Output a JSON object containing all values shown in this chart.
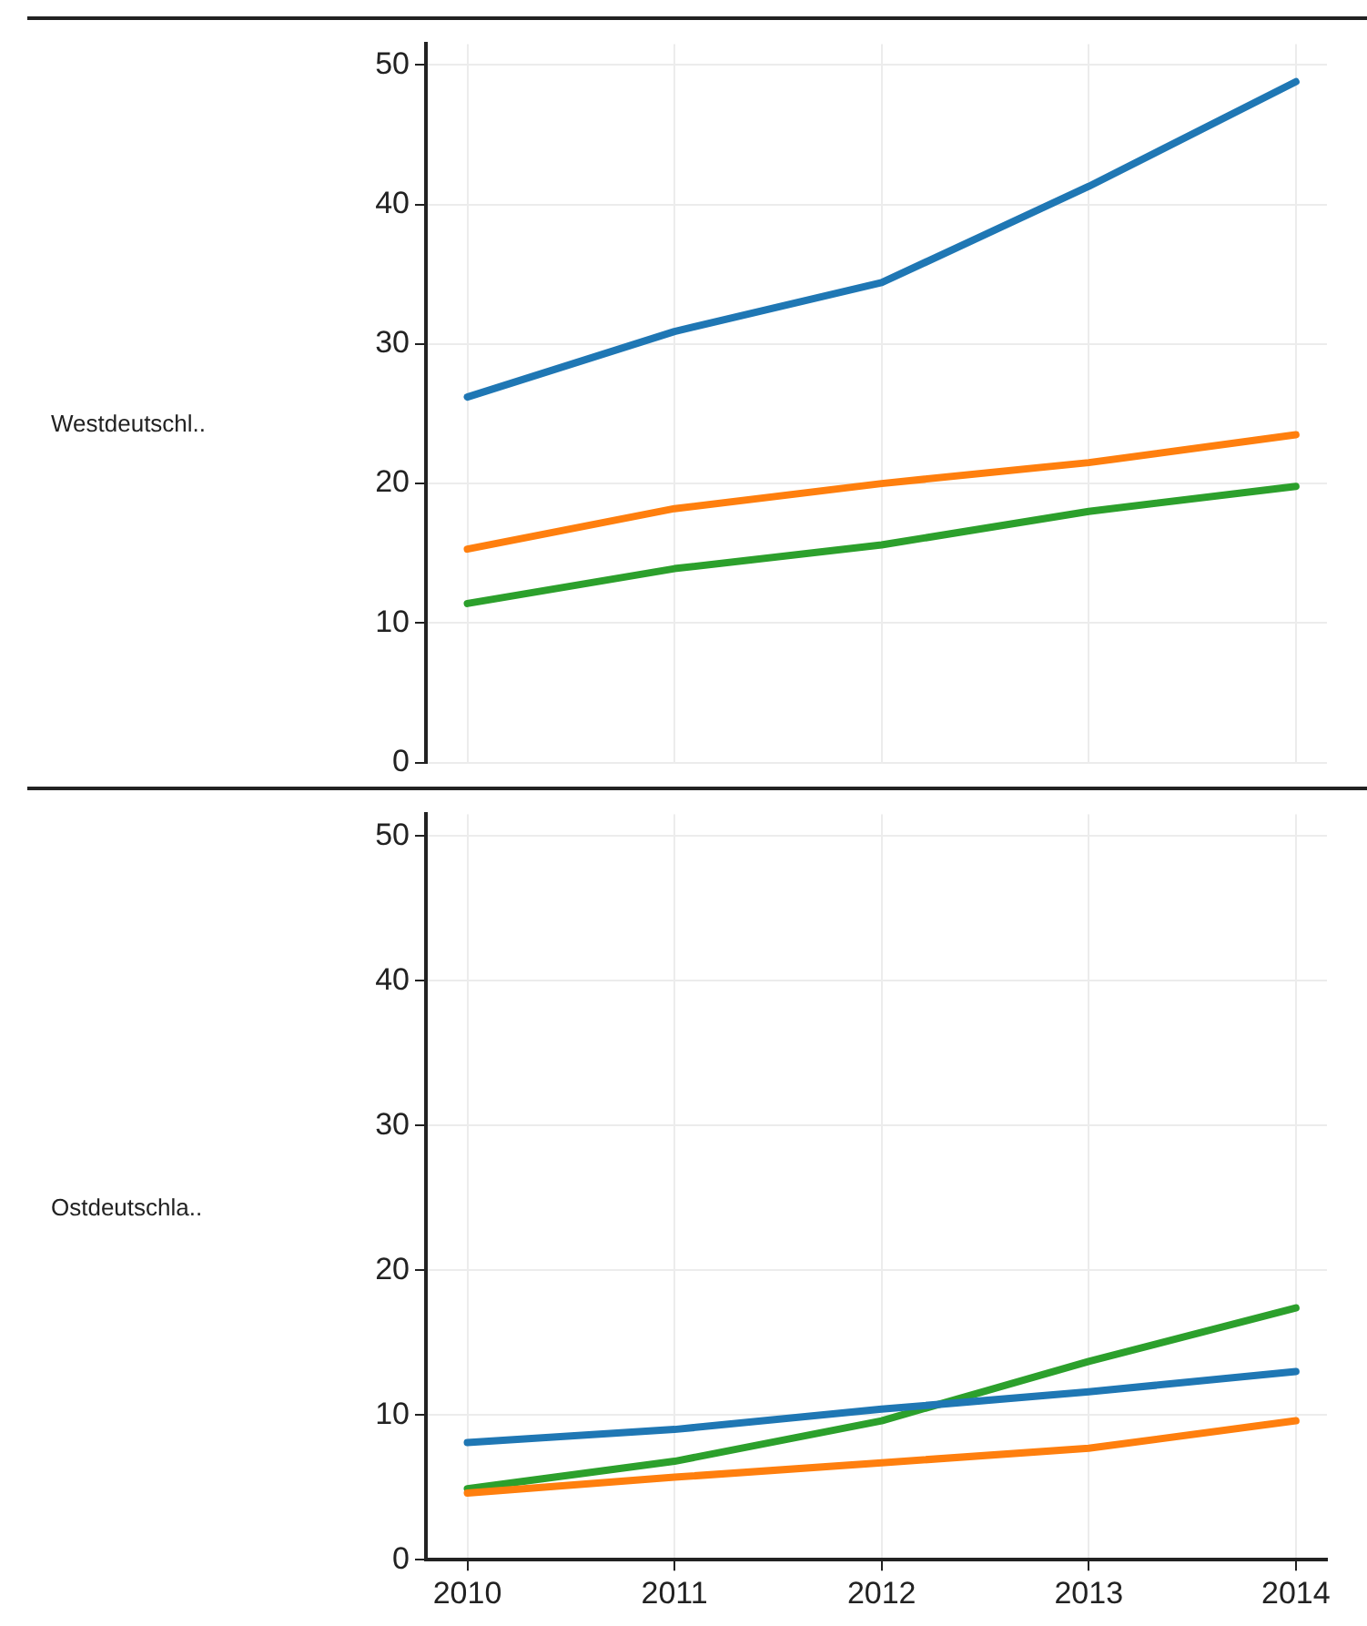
{
  "chart_data": [
    {
      "type": "line",
      "ylabel": "Westdeutschl..",
      "x": [
        2010,
        2011,
        2012,
        2013,
        2014
      ],
      "xlim": [
        2009.8,
        2014.15
      ],
      "xticks": [
        2010,
        2011,
        2012,
        2013,
        2014
      ],
      "ylim": [
        0,
        51.5
      ],
      "yticks": [
        0,
        10,
        20,
        30,
        40,
        50
      ],
      "grid": true,
      "tick_labels": "y",
      "series": [
        {
          "color": "#1f77b4",
          "values": [
            26.2,
            30.9,
            34.4,
            41.3,
            48.8
          ]
        },
        {
          "color": "#ff7f0e",
          "values": [
            15.3,
            18.2,
            20.0,
            21.5,
            23.5
          ]
        },
        {
          "color": "#2ca02c",
          "values": [
            11.4,
            13.9,
            15.6,
            18.0,
            19.8
          ]
        }
      ]
    },
    {
      "type": "line",
      "ylabel": "Ostdeutschla..",
      "x": [
        2010,
        2011,
        2012,
        2013,
        2014
      ],
      "xlim": [
        2009.8,
        2014.15
      ],
      "xticks": [
        2010,
        2011,
        2012,
        2013,
        2014
      ],
      "ylim": [
        0,
        51.5
      ],
      "yticks": [
        0,
        10,
        20,
        30,
        40,
        50
      ],
      "grid": true,
      "series": [
        {
          "color": "#1f77b4",
          "values": [
            8.1,
            9.0,
            10.4,
            11.6,
            13.0
          ]
        },
        {
          "color": "#ff7f0e",
          "values": [
            4.6,
            5.7,
            6.7,
            7.7,
            9.6
          ]
        },
        {
          "color": "#2ca02c",
          "values": [
            4.9,
            6.8,
            9.6,
            13.7,
            17.4
          ]
        }
      ]
    }
  ]
}
